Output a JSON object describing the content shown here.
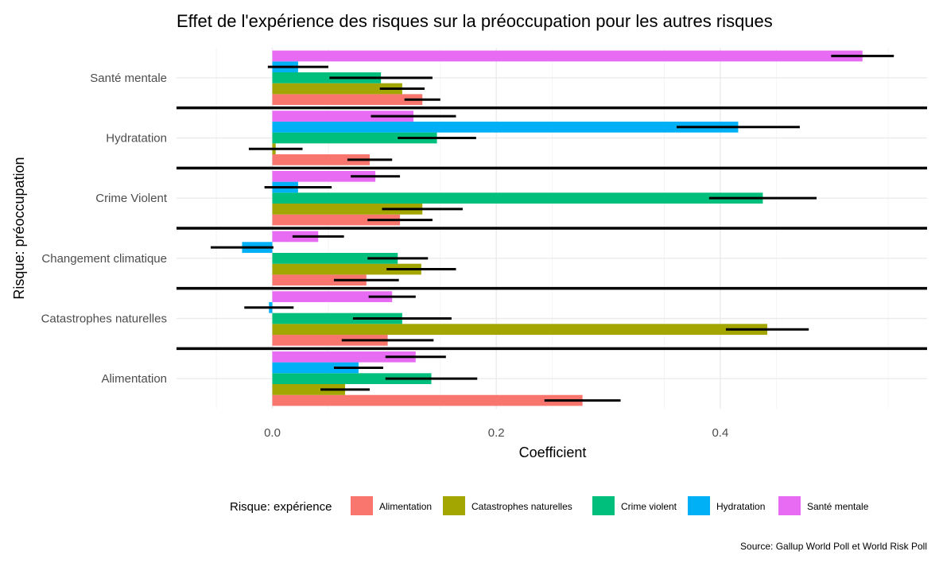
{
  "chart_data": {
    "type": "bar",
    "orientation": "horizontal",
    "title": "Effet de l'expérience des risques sur la préoccupation pour les autres risques",
    "xlabel": "Coefficient",
    "ylabel": "Risque: préoccupation",
    "xlim": [
      -0.085,
      0.585
    ],
    "xticks": [
      "0.0",
      "0.2",
      "0.4"
    ],
    "xtick_values": [
      0.0,
      0.2,
      0.4
    ],
    "grid": true,
    "legend_title": "Risque: expérience",
    "legend_position": "bottom",
    "caption": "Source: Gallup World Poll et World Risk Poll",
    "categories": [
      "Santé mentale",
      "Hydratation",
      "Crime Violent",
      "Changement climatique",
      "Catastrophes naturelles",
      "Alimentation"
    ],
    "series": [
      {
        "name": "Alimentation",
        "color": "#F8766D",
        "values": [
          0.134,
          0.087,
          0.114,
          0.084,
          0.103,
          0.277
        ],
        "ci_low": [
          0.118,
          0.067,
          0.085,
          0.055,
          0.062,
          0.243
        ],
        "ci_high": [
          0.15,
          0.107,
          0.143,
          0.113,
          0.144,
          0.311
        ]
      },
      {
        "name": "Catastrophes naturelles",
        "color": "#A3A500",
        "values": [
          0.116,
          0.003,
          0.134,
          0.133,
          0.442,
          0.065
        ],
        "ci_low": [
          0.096,
          -0.021,
          0.098,
          0.102,
          0.405,
          0.043
        ],
        "ci_high": [
          0.136,
          0.027,
          0.17,
          0.164,
          0.479,
          0.087
        ]
      },
      {
        "name": "Crime violent",
        "color": "#00BF7D",
        "values": [
          0.097,
          0.147,
          0.438,
          0.112,
          0.116,
          0.142
        ],
        "ci_low": [
          0.051,
          0.112,
          0.39,
          0.085,
          0.072,
          0.101
        ],
        "ci_high": [
          0.143,
          0.182,
          0.486,
          0.139,
          0.16,
          0.183
        ]
      },
      {
        "name": "Hydratation",
        "color": "#00B0F6",
        "values": [
          0.023,
          0.416,
          0.023,
          -0.027,
          -0.003,
          0.077
        ],
        "ci_low": [
          -0.004,
          0.361,
          -0.007,
          -0.055,
          -0.025,
          0.055
        ],
        "ci_high": [
          0.05,
          0.471,
          0.053,
          0.001,
          0.019,
          0.099
        ]
      },
      {
        "name": "Santé mentale",
        "color": "#E76BF3",
        "values": [
          0.527,
          0.126,
          0.092,
          0.041,
          0.107,
          0.128
        ],
        "ci_low": [
          0.499,
          0.088,
          0.07,
          0.018,
          0.086,
          0.101
        ],
        "ci_high": [
          0.555,
          0.164,
          0.114,
          0.064,
          0.128,
          0.155
        ]
      }
    ]
  }
}
